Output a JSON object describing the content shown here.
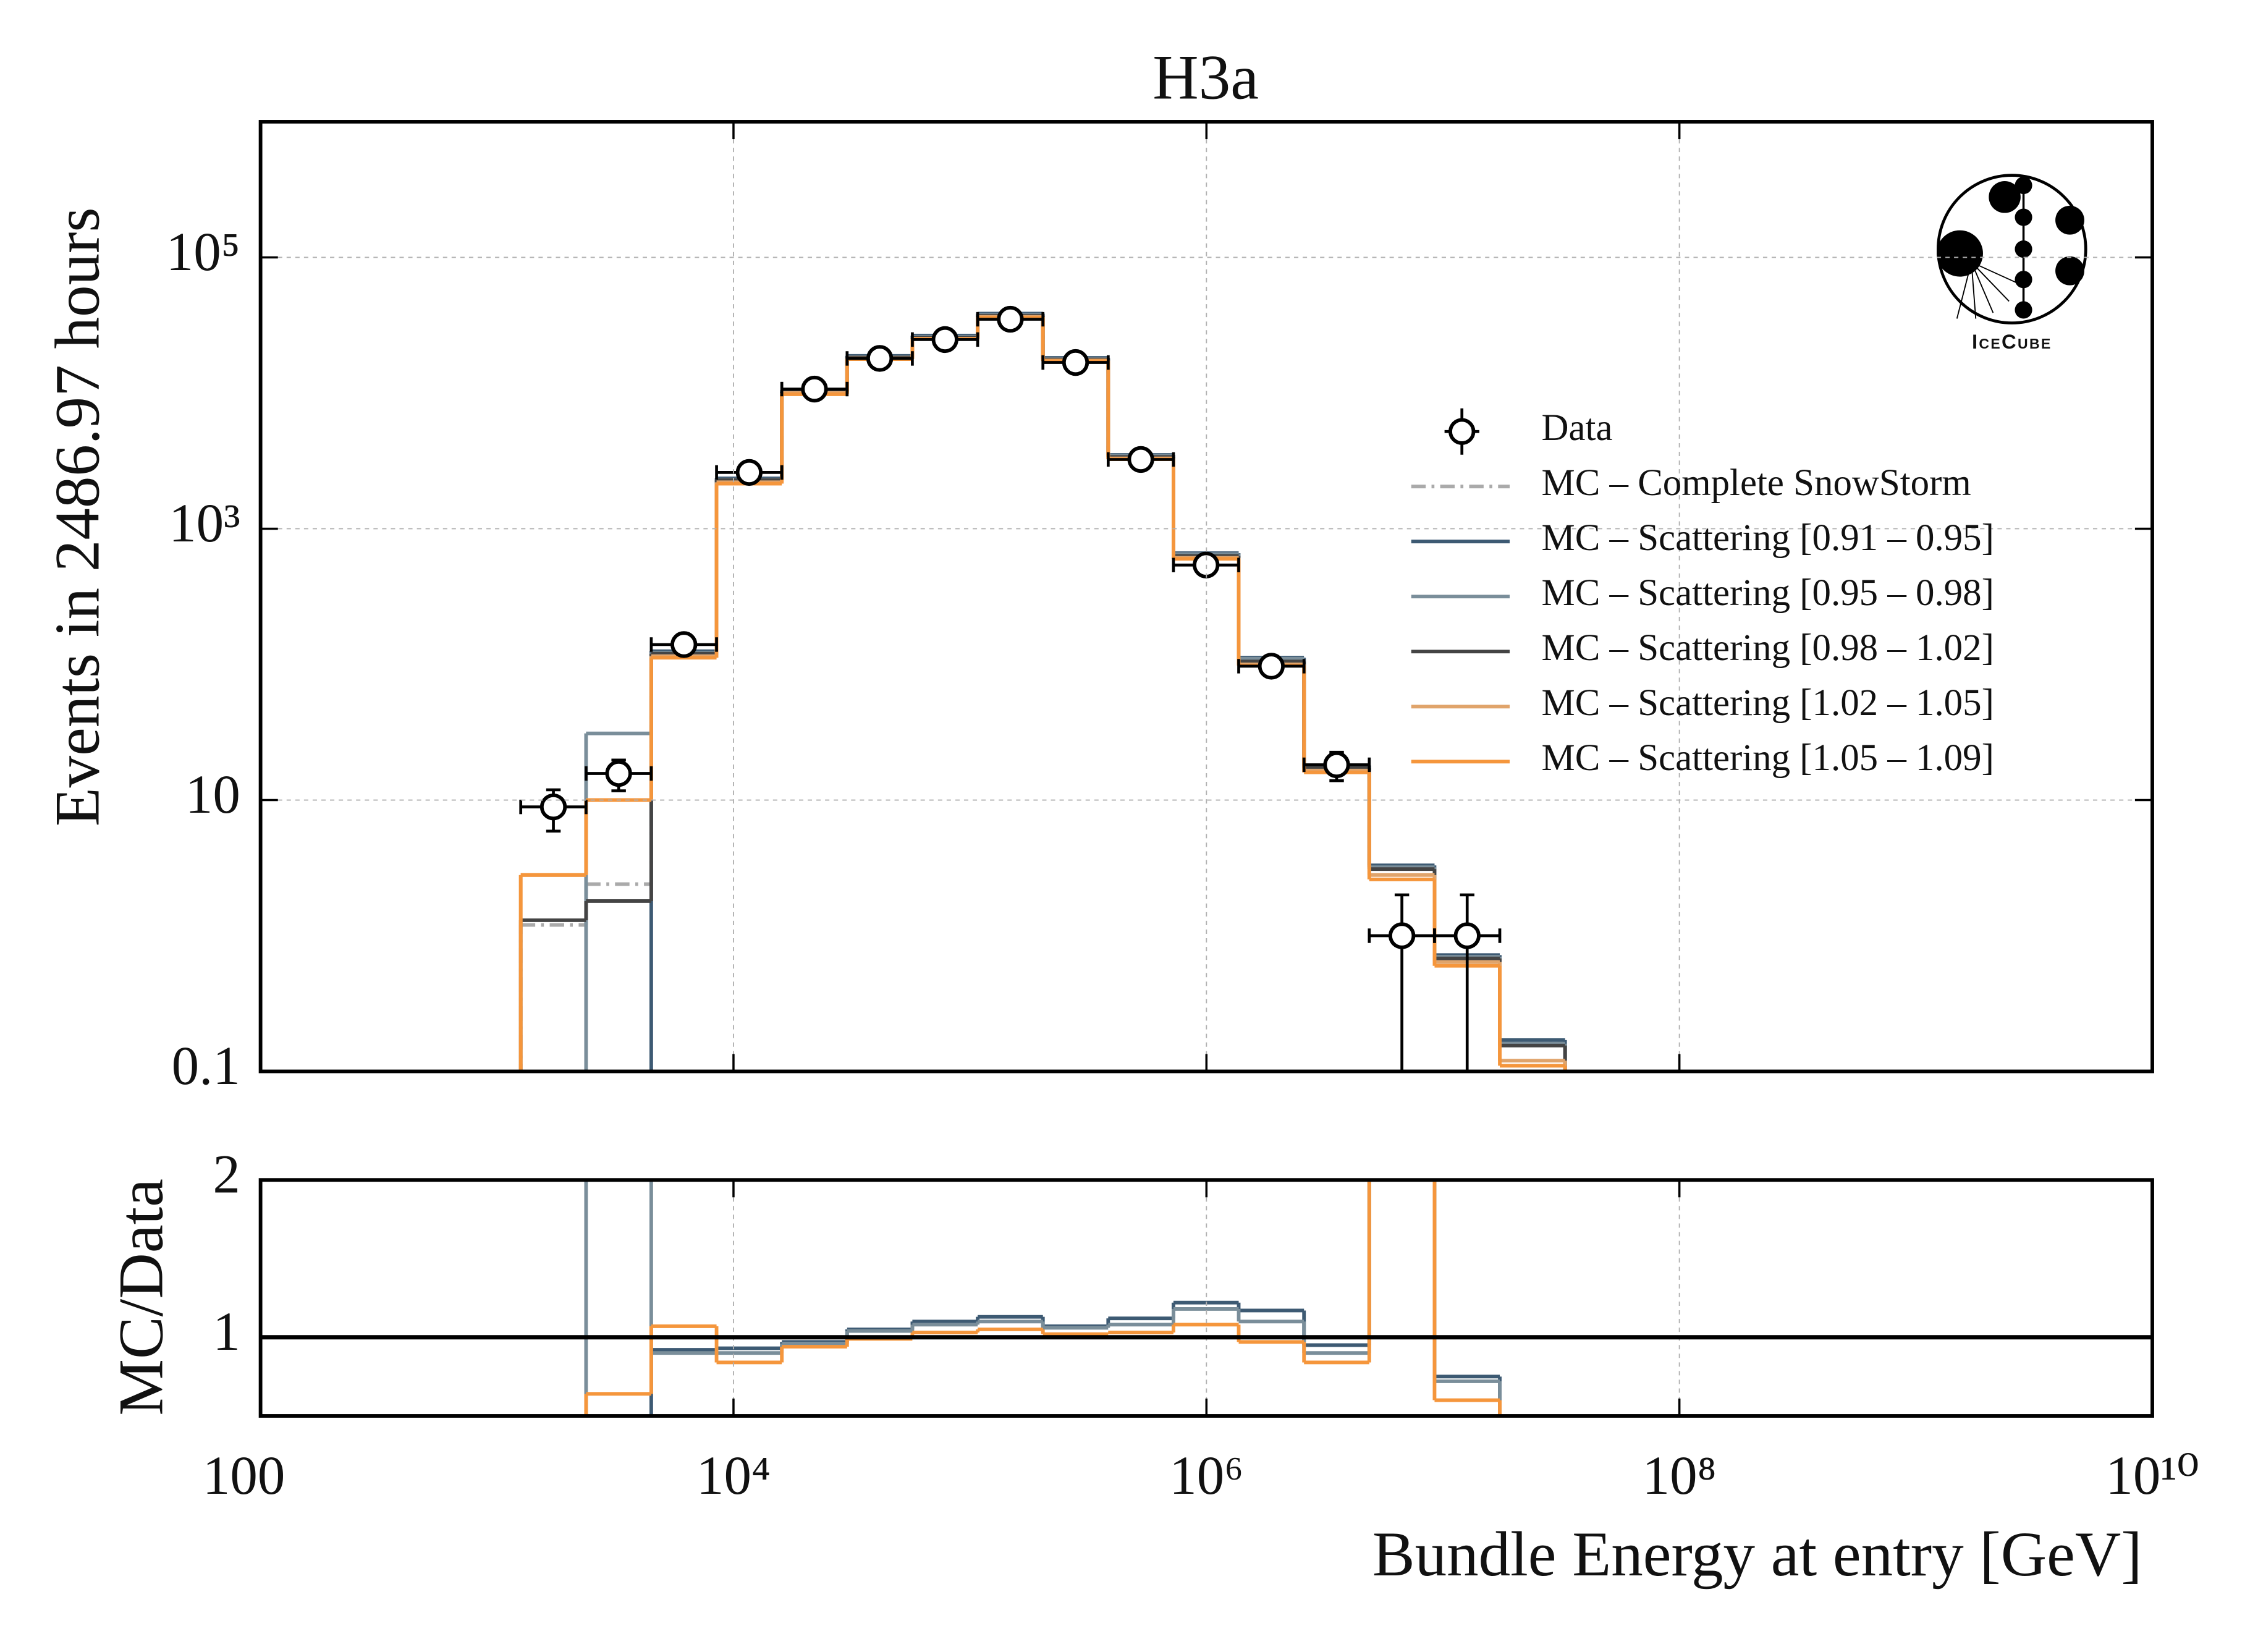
{
  "chart_data": [
    {
      "type": "histogram",
      "title": "H3a",
      "ylabel": "Events in 2486.97 hours",
      "logo_text": "IceCube",
      "xscale": "log",
      "yscale": "log",
      "grid": true,
      "legend": "center right",
      "xlim": [
        100,
        10000000000
      ],
      "xticks": [
        100,
        {
          "value": 10000,
          "label": "10⁴"
        },
        {
          "value": 1000000,
          "label": "10⁶"
        },
        {
          "value": 100000000,
          "label": "10⁸"
        },
        {
          "value": 10000000000,
          "label": "10¹⁰"
        }
      ],
      "ylim": [
        0.1,
        1000000
      ],
      "yticks": [
        0.1,
        10,
        {
          "value": 1000,
          "label": "10³"
        },
        {
          "value": 100000,
          "label": "10⁵"
        }
      ],
      "bins": [
        1260,
        2380,
        4490,
        8480,
        16010,
        30230,
        57070,
        107800,
        203500,
        384200,
        725300,
        1369000,
        2586000,
        4882000,
        9217000,
        17400000,
        32860000
      ],
      "data": {
        "name": "Data",
        "color": "#000000",
        "values": [
          8.9,
          15.7,
          140,
          2600,
          10700,
          18000,
          24800,
          35000,
          16800,
          3240,
          540,
          97,
          18.2,
          1,
          1,
          null
        ],
        "errors": [
          3,
          4,
          12,
          51,
          103,
          134,
          157,
          187,
          130,
          57,
          23,
          10,
          4.3,
          1,
          1,
          null
        ]
      },
      "series": [
        {
          "name": "MC – Complete SnowStorm",
          "color": "#aaaaaa",
          "dash": true,
          "values": [
            1.2,
            2.4,
            120,
            2300,
            10300,
            18500,
            25800,
            37500,
            17800,
            3400,
            630,
            106,
            17.5,
            3.2,
            0.7,
            0.16
          ]
        },
        {
          "name": "MC – Scattering [0.91 – 0.95]",
          "color": "#3d5a73",
          "values": [
            null,
            null,
            125,
            2350,
            10500,
            18800,
            26500,
            38500,
            18200,
            3500,
            660,
            112,
            18,
            3.3,
            0.72,
            0.17
          ]
        },
        {
          "name": "MC – Scattering [0.95 – 0.98]",
          "color": "#7a8e9a",
          "values": [
            null,
            31,
            122,
            2300,
            10300,
            18500,
            26000,
            37800,
            18000,
            3450,
            650,
            110,
            17.6,
            3.2,
            0.7,
            0.16
          ]
        },
        {
          "name": "MC – Scattering [0.98 – 1.02]",
          "color": "#444444",
          "values": [
            1.3,
            1.8,
            120,
            2280,
            10200,
            18300,
            25600,
            37200,
            17700,
            3380,
            630,
            105,
            17.2,
            3.1,
            0.68,
            0.155
          ]
        },
        {
          "name": "MC – Scattering [1.02 – 1.05]",
          "color": "#e0a46b",
          "values": [
            2.8,
            10,
            115,
            2200,
            10000,
            18000,
            25200,
            36500,
            17400,
            3300,
            610,
            100,
            16.5,
            2.8,
            0.64,
            0.12
          ]
        },
        {
          "name": "MC – Scattering [1.05 – 1.09]",
          "color": "#f5963c",
          "values": [
            2.8,
            10,
            112,
            2150,
            9800,
            17800,
            25000,
            36000,
            17200,
            3250,
            600,
            98,
            16,
            2.6,
            0.6,
            0.11
          ]
        }
      ]
    },
    {
      "type": "ratio",
      "ylabel": "MC/Data",
      "xlabel": "Bundle Energy at entry [GeV]",
      "grid": true,
      "ylim": [
        0.5,
        2
      ],
      "yticks": [
        1,
        2
      ],
      "reference_line": 1,
      "series": [
        {
          "color": "#3d5a73",
          "values": [
            null,
            null,
            0.92,
            0.93,
            0.97,
            1.05,
            1.1,
            1.13,
            1.07,
            1.12,
            1.22,
            1.17,
            0.95,
            3.3,
            0.75,
            null
          ]
        },
        {
          "color": "#7a8e9a",
          "values": [
            null,
            2.0,
            0.9,
            0.9,
            0.96,
            1.04,
            1.08,
            1.1,
            1.06,
            1.08,
            1.18,
            1.1,
            0.9,
            3.2,
            0.72,
            null
          ]
        },
        {
          "color": "#f5963c",
          "values": [
            null,
            0.64,
            1.07,
            0.84,
            0.94,
            0.99,
            1.03,
            1.05,
            1.02,
            1.03,
            1.08,
            0.97,
            0.84,
            2.6,
            0.6,
            null
          ]
        }
      ]
    }
  ]
}
